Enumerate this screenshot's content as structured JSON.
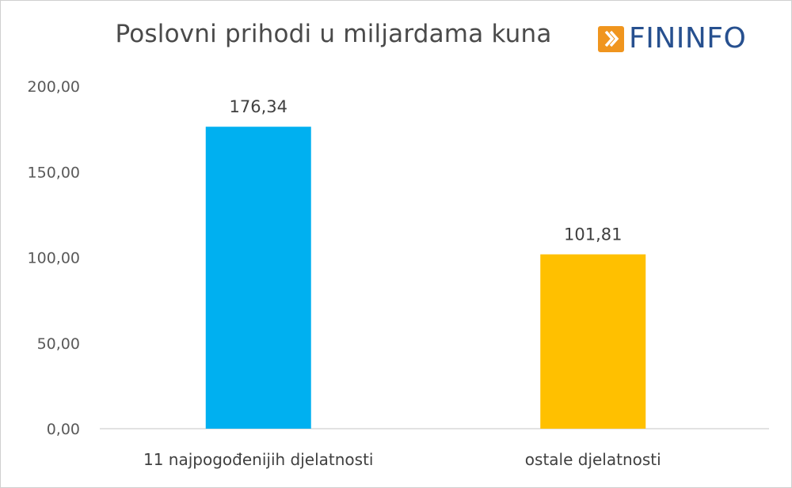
{
  "logo": {
    "text": "FININFO"
  },
  "colors": {
    "series_1": "#00B0F0",
    "series_2": "#FFC000",
    "axis": "#d9d9d9",
    "logo_orange": "#f0951e",
    "logo_blue": "#27508f"
  },
  "chart_data": {
    "type": "bar",
    "title": "Poslovni prihodi u miljardama kuna",
    "categories": [
      "11 najpogođenijih djelatnosti",
      "ostale djelatnosti"
    ],
    "values": [
      176.34,
      101.81
    ],
    "value_labels": [
      "176,34",
      "101,81"
    ],
    "bar_colors": [
      "#00B0F0",
      "#FFC000"
    ],
    "ylim": [
      0,
      200
    ],
    "yticks": [
      0,
      50,
      100,
      150,
      200
    ],
    "ytick_labels": [
      "0,00",
      "50,00",
      "100,00",
      "150,00",
      "200,00"
    ],
    "grid": false,
    "legend": "none"
  }
}
